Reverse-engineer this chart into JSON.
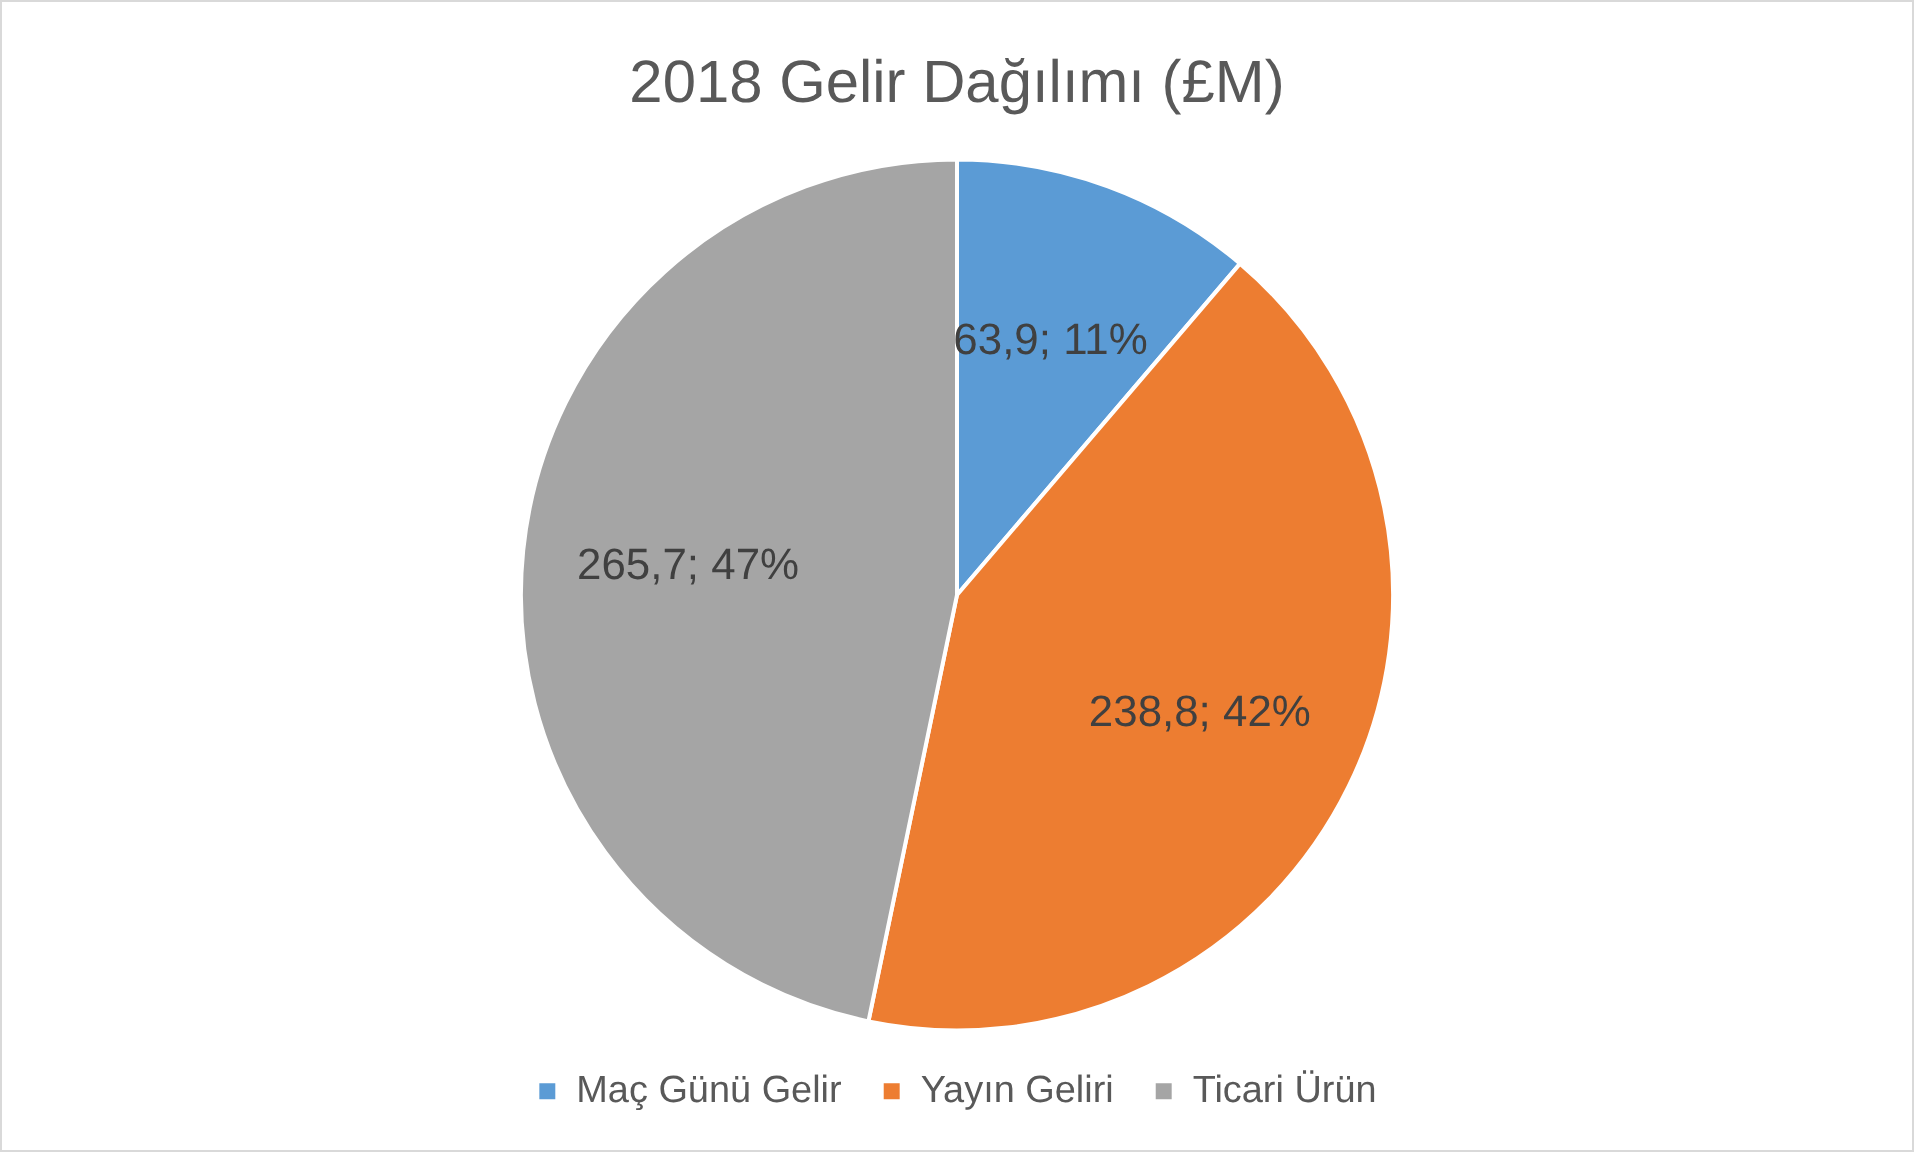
{
  "chart_data": {
    "type": "pie",
    "title": "2018 Gelir Dağılımı (£M)",
    "categories": [
      "Maç Günü Gelir",
      "Yayın Geliri",
      "Ticari Ürün"
    ],
    "values": [
      63.9,
      238.8,
      265.7
    ],
    "colors": [
      "#5b9bd5",
      "#ed7d31",
      "#a5a5a5"
    ],
    "value_labels": [
      "63,9; 11%",
      "238,8; 42%",
      "265,7; 47%"
    ],
    "legend": "bottom"
  }
}
